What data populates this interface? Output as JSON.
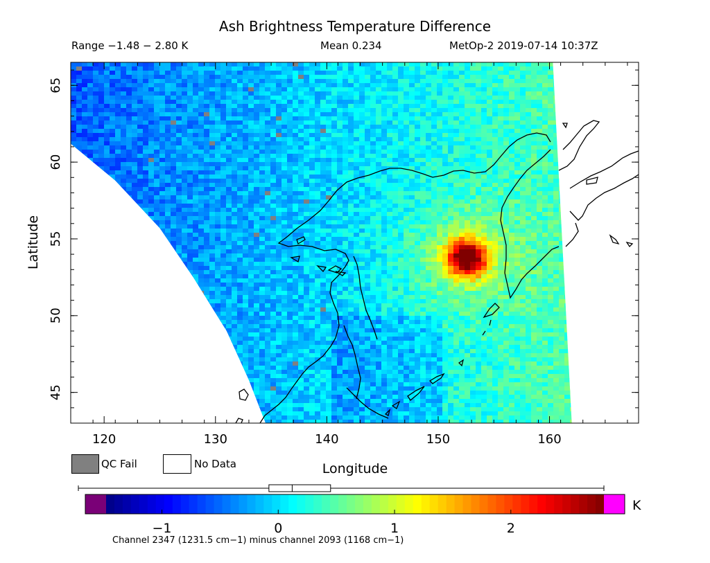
{
  "header": {
    "title": "Ash Brightness Temperature Difference",
    "range": "Range −1.48 − 2.80 K",
    "mean": "Mean 0.234",
    "satellite_time": "MetOp-2 2019-07-14 10:37Z"
  },
  "legend": {
    "qc_fail_label": "QC Fail",
    "qc_fail_color": "#808080",
    "no_data_label": "No Data",
    "no_data_color": "#ffffff"
  },
  "colorbar": {
    "unit": "K",
    "min": -1.48,
    "max": 2.8,
    "ticks": [
      -1,
      0,
      1,
      2
    ],
    "tick_labels": [
      "−1",
      "0",
      "1",
      "2"
    ],
    "below_range_color": "#7a0077",
    "above_range_color": "#ff00ff",
    "boxplot": {
      "min": -1.48,
      "q1": -0.08,
      "median": 0.12,
      "q3": 0.45,
      "max": 2.8
    },
    "footnote": "Channel 2347 (1231.5 cm−1) minus channel 2093 (1168 cm−1)"
  },
  "chart_data": {
    "type": "heatmap",
    "title": "Ash Brightness Temperature Difference",
    "xlabel": "Longitude",
    "ylabel": "Latitude",
    "xlim": [
      117,
      168
    ],
    "ylim": [
      43,
      66.5
    ],
    "xticks": [
      120,
      130,
      140,
      150,
      160
    ],
    "yticks": [
      45,
      50,
      55,
      60,
      65
    ],
    "units": "K",
    "value_range": [
      -1.48,
      2.8
    ],
    "mean": 0.234,
    "hotspot": {
      "lon": 152.3,
      "lat": 53.9,
      "peak_value": 2.8
    },
    "swath": {
      "west_edge": [
        [
          117,
          61.2
        ],
        [
          121,
          58.8
        ],
        [
          125,
          55.7
        ],
        [
          128,
          52.5
        ],
        [
          131,
          49.0
        ],
        [
          133,
          45.8
        ],
        [
          134.5,
          43.0
        ]
      ],
      "east_edge": [
        [
          160.3,
          66.5
        ],
        [
          162,
          43.0
        ]
      ]
    }
  }
}
